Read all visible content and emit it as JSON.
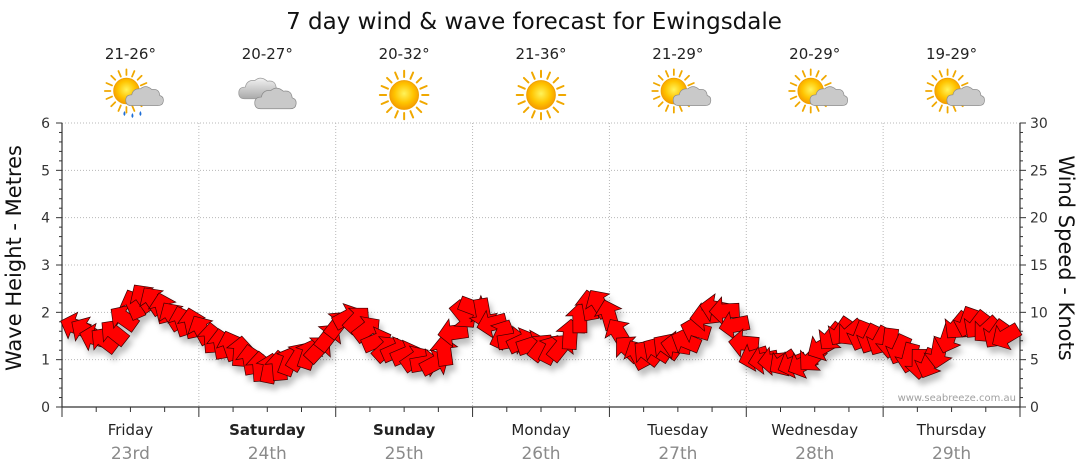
{
  "chart_data": {
    "type": "line",
    "title": "7 day wind & wave forecast for Ewingsdale",
    "ylabel_left": "Wave Height - Metres",
    "ylabel_right": "Wind Speed - Knots",
    "ylim_left": [
      0,
      6
    ],
    "ylim_right": [
      0,
      30
    ],
    "yticks_left": [
      "0",
      "1",
      "2",
      "3",
      "4",
      "5",
      "6"
    ],
    "yticks_right": [
      "0",
      "5",
      "10",
      "15",
      "20",
      "25",
      "30"
    ],
    "grid": true,
    "watermark": "www.seabreeze.com.au",
    "days": [
      {
        "day": "Friday",
        "date": "23rd",
        "temp": "21-26°",
        "weather": "partly-cloudy-showers",
        "bold": false
      },
      {
        "day": "Saturday",
        "date": "24th",
        "temp": "20-27°",
        "weather": "cloudy",
        "bold": true
      },
      {
        "day": "Sunday",
        "date": "25th",
        "temp": "20-32°",
        "weather": "sunny",
        "bold": true
      },
      {
        "day": "Monday",
        "date": "26th",
        "temp": "21-36°",
        "weather": "sunny",
        "bold": false
      },
      {
        "day": "Tuesday",
        "date": "27th",
        "temp": "21-29°",
        "weather": "partly-cloudy",
        "bold": false
      },
      {
        "day": "Wednesday",
        "date": "28th",
        "temp": "20-29°",
        "weather": "partly-cloudy",
        "bold": false
      },
      {
        "day": "Thursday",
        "date": "29th",
        "temp": "19-29°",
        "weather": "partly-cloudy",
        "bold": false
      }
    ],
    "series": [
      {
        "name": "Wind Speed (Knots) with direction",
        "color": "#ff0000",
        "x_days": [
          0.1,
          0.3,
          0.6,
          0.9,
          1.2,
          1.5,
          1.8,
          2.1,
          2.4,
          2.7,
          3.0,
          3.3,
          3.6,
          3.9,
          4.2,
          4.5,
          4.8,
          5.1,
          5.4,
          5.7,
          6.0,
          6.3,
          6.6,
          6.9
        ],
        "values": [
          8.5,
          7,
          11.5,
          9,
          6.5,
          4,
          5.5,
          9.5,
          6,
          4.5,
          10.5,
          7,
          6,
          11,
          5.5,
          6.5,
          10.5,
          5,
          4.5,
          8,
          7,
          4.5,
          9,
          7.5
        ],
        "direction_deg": [
          200,
          210,
          240,
          250,
          260,
          270,
          300,
          320,
          330,
          340,
          20,
          350,
          300,
          250,
          230,
          200,
          180,
          170,
          150,
          130,
          110,
          100,
          120,
          140
        ]
      }
    ]
  }
}
